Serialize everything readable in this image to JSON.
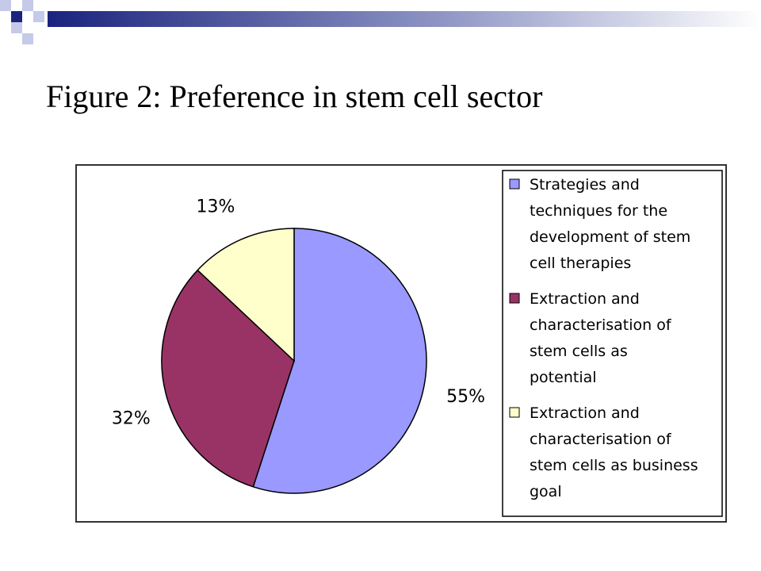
{
  "slide": {
    "title": "Figure 2: Preference in stem cell sector"
  },
  "colors": {
    "deco_navy": "#1a237e",
    "deco_light": "#c5cae9"
  },
  "chart_data": {
    "type": "pie",
    "title": "Figure 2: Preference in stem cell sector",
    "legend_position": "right",
    "slices": [
      {
        "label": "Strategies and techniques for the development of stem cell therapies",
        "legend_lines": [
          "Strategies and",
          "techniques for the",
          "development of stem",
          "cell therapies"
        ],
        "value": 55,
        "value_label": "55%",
        "color": "#9999ff"
      },
      {
        "label": "Extraction and characterisation of stem cells as potential",
        "legend_lines": [
          "Extraction and",
          "characterisation of",
          "stem cells as",
          "potential"
        ],
        "value": 32,
        "value_label": "32%",
        "color": "#993366"
      },
      {
        "label": "Extraction and characterisation of stem cells as business goal",
        "legend_lines": [
          "Extraction and",
          "characterisation of",
          "stem cells as business",
          "goal"
        ],
        "value": 13,
        "value_label": "13%",
        "color": "#ffffcc"
      }
    ]
  }
}
